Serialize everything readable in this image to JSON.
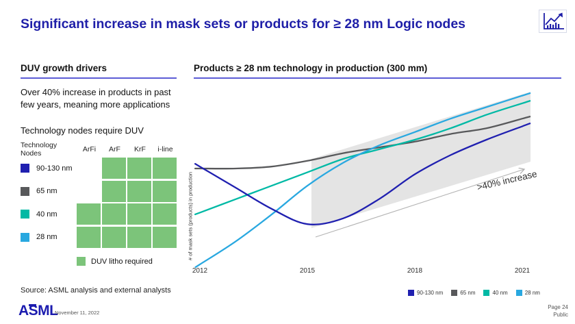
{
  "title": "Significant increase in mask sets or products for ≥ 28 nm Logic nodes",
  "left_panel": {
    "heading": "DUV growth drivers",
    "body1": "Over 40% increase in products in past few years, meaning more applications",
    "body2": "Technology nodes require DUV",
    "matrix": {
      "corner_label": "Technology Nodes",
      "columns": [
        "ArFi",
        "ArF",
        "KrF",
        "i-line"
      ],
      "rows": [
        {
          "label": "90-130 nm",
          "swatch": "#2020B0",
          "cells": [
            false,
            true,
            true,
            true
          ]
        },
        {
          "label": "65 nm",
          "swatch": "#58595B",
          "cells": [
            false,
            true,
            true,
            true
          ]
        },
        {
          "label": "40 nm",
          "swatch": "#00B9A5",
          "cells": [
            true,
            true,
            true,
            true
          ]
        },
        {
          "label": "28 nm",
          "swatch": "#29A8E0",
          "cells": [
            true,
            true,
            true,
            true
          ]
        }
      ],
      "cell_color": "#7CC47A",
      "legend_label": "DUV litho required"
    }
  },
  "chart_data": {
    "type": "line",
    "title": "Products ≥ 28 nm technology in production (300 mm)",
    "ylabel": "# of mask sets (products) in production",
    "xlabel": "",
    "x": [
      2012,
      2013,
      2014,
      2015,
      2016,
      2017,
      2018,
      2019,
      2020,
      2021
    ],
    "x_ticks_shown": [
      "2012",
      "2015",
      "2018",
      "2021"
    ],
    "y_axis_note": "relative scale 0-100, no tick labels shown",
    "ylim": [
      0,
      100
    ],
    "grid": false,
    "legend_position": "bottom-right",
    "series": [
      {
        "name": "90-130 nm",
        "color": "#2020B0",
        "values": [
          56,
          45,
          34,
          26,
          29,
          39,
          52,
          62,
          70,
          77
        ]
      },
      {
        "name": "65 nm",
        "color": "#58595B",
        "values": [
          55,
          55,
          56,
          59,
          63,
          66,
          69,
          73,
          76,
          81
        ]
      },
      {
        "name": "40 nm",
        "color": "#00B9A5",
        "values": [
          32,
          39,
          46,
          53,
          60,
          65,
          70,
          76,
          83,
          89
        ]
      },
      {
        "name": "28 nm",
        "color": "#29A8E0",
        "values": [
          5,
          17,
          31,
          46,
          58,
          67,
          74,
          81,
          87,
          93
        ]
      }
    ],
    "annotations": [
      {
        "type": "band",
        "from_x": 2015,
        "to_x": 2021,
        "color": "#E4E4E4"
      },
      {
        "type": "arrow-label",
        "text": ">40% increase",
        "arrow_color": "#B3B3B3"
      }
    ]
  },
  "footer": {
    "source": "Source: ASML analysis and external analysts",
    "logo": "ASML",
    "date": "November 11, 2022",
    "page": "Page 24",
    "classification": "Public"
  },
  "colors": {
    "brand_navy": "#1E1EA8",
    "heading_underline": "#5C5CD6",
    "band_gray": "#E4E4E4",
    "matrix_green": "#7CC47A"
  }
}
